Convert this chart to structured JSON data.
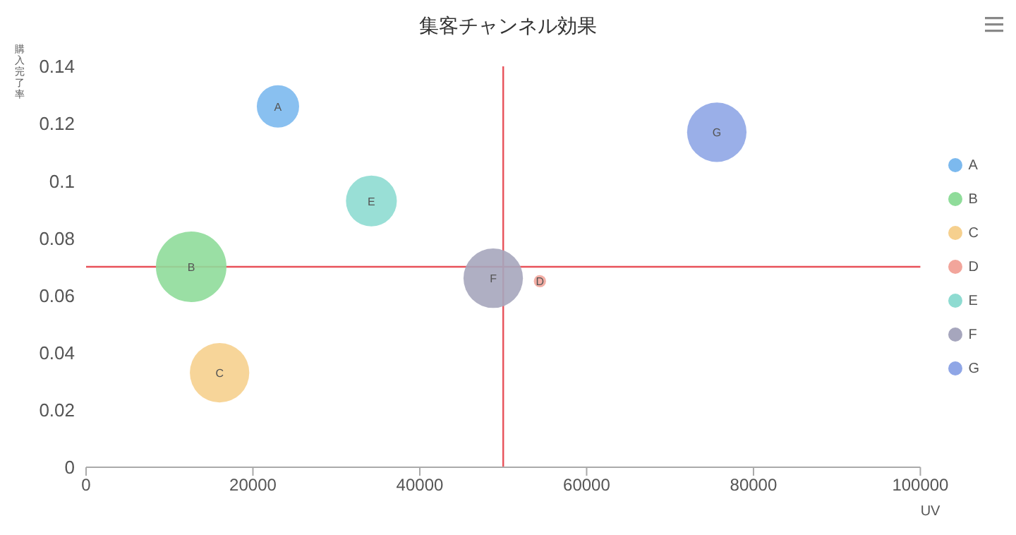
{
  "chart_data": {
    "type": "bubble",
    "title": "集客チャンネル効果",
    "xlabel": "UV",
    "ylabel": "購入完了率",
    "xlim": [
      0,
      100000
    ],
    "xticks": [
      0,
      20000,
      40000,
      60000,
      80000,
      100000
    ],
    "ylim": [
      0,
      0.14
    ],
    "yticks": [
      0,
      0.02,
      0.04,
      0.06,
      0.08,
      0.1,
      0.12,
      0.14
    ],
    "grid": false,
    "legend": "right",
    "series": [
      {
        "name": "A",
        "color": "#7cb9ee",
        "x": [
          23000
        ],
        "values": [
          0.126
        ],
        "sizes": [
          0.36
        ]
      },
      {
        "name": "B",
        "color": "#8fdc9a",
        "x": [
          12600
        ],
        "values": [
          0.07
        ],
        "sizes": [
          1
        ]
      },
      {
        "name": "C",
        "color": "#f6d08e",
        "x": [
          16000
        ],
        "values": [
          0.033
        ],
        "sizes": [
          0.71
        ]
      },
      {
        "name": "D",
        "color": "#f2a59b",
        "x": [
          54400
        ],
        "values": [
          0.065
        ],
        "sizes": [
          0.03
        ]
      },
      {
        "name": "E",
        "color": "#8edbd1",
        "x": [
          34200
        ],
        "values": [
          0.093
        ],
        "sizes": [
          0.52
        ]
      },
      {
        "name": "F",
        "color": "#a6a6bd",
        "x": [
          48800
        ],
        "values": [
          0.066
        ],
        "sizes": [
          0.71
        ]
      },
      {
        "name": "G",
        "color": "#8fa6e6",
        "x": [
          75600
        ],
        "values": [
          0.117
        ],
        "sizes": [
          0.71
        ]
      }
    ],
    "ref_lines": [
      {
        "axis": "x",
        "value": 50000,
        "color": "#e8525a"
      },
      {
        "axis": "y",
        "value": 0.07,
        "color": "#e8525a"
      }
    ]
  }
}
